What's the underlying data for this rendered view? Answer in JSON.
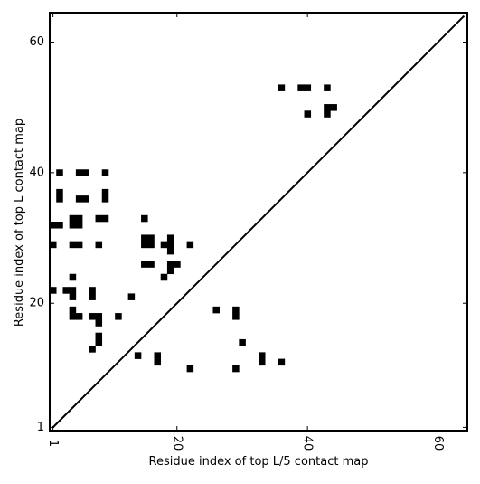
{
  "chart_data": {
    "type": "heatmap",
    "title": "",
    "xlabel": "Residue index of top L/5 contact map",
    "ylabel": "Residue index of top L contact map",
    "xlim": [
      0.5,
      64.5
    ],
    "ylim": [
      0.5,
      64.5
    ],
    "xticks": [
      {
        "value": 1,
        "label": "1"
      },
      {
        "value": 20,
        "label": "20"
      },
      {
        "value": 40,
        "label": "40"
      },
      {
        "value": 60,
        "label": "60"
      }
    ],
    "yticks": [
      {
        "value": 1,
        "label": "1"
      },
      {
        "value": 20,
        "label": "20"
      },
      {
        "value": 40,
        "label": "40"
      },
      {
        "value": 60,
        "label": "60"
      }
    ],
    "diagonal": {
      "from": [
        1,
        1
      ],
      "to": [
        64,
        64
      ]
    },
    "cell_color": "#000000",
    "upper_triangle_cells": [
      [
        36,
        53
      ],
      [
        39,
        53
      ],
      [
        40,
        53
      ],
      [
        43,
        53
      ],
      [
        40,
        49
      ],
      [
        43,
        49
      ],
      [
        43,
        50
      ],
      [
        44,
        50
      ],
      [
        14,
        12
      ],
      [
        17,
        12
      ],
      [
        17,
        11
      ],
      [
        22,
        10
      ],
      [
        29,
        10
      ],
      [
        33,
        12
      ],
      [
        33,
        11
      ],
      [
        36,
        11
      ],
      [
        26,
        19
      ],
      [
        29,
        19
      ],
      [
        29,
        18
      ],
      [
        30,
        14
      ]
    ],
    "lower_triangle_cells": [
      [
        2,
        40
      ],
      [
        5,
        40
      ],
      [
        6,
        40
      ],
      [
        9,
        40
      ],
      [
        2,
        37
      ],
      [
        2,
        36
      ],
      [
        5,
        36
      ],
      [
        6,
        36
      ],
      [
        9,
        37
      ],
      [
        9,
        36
      ],
      [
        1,
        32
      ],
      [
        2,
        32
      ],
      [
        4,
        33
      ],
      [
        5,
        33
      ],
      [
        4,
        32
      ],
      [
        5,
        32
      ],
      [
        8,
        33
      ],
      [
        9,
        33
      ],
      [
        15,
        33
      ],
      [
        1,
        29
      ],
      [
        4,
        29
      ],
      [
        5,
        29
      ],
      [
        8,
        29
      ],
      [
        15,
        30
      ],
      [
        16,
        30
      ],
      [
        15,
        29
      ],
      [
        16,
        29
      ],
      [
        18,
        29
      ],
      [
        19,
        30
      ],
      [
        19,
        29
      ],
      [
        19,
        28
      ],
      [
        22,
        29
      ],
      [
        15,
        26
      ],
      [
        16,
        26
      ],
      [
        19,
        26
      ],
      [
        20,
        26
      ],
      [
        19,
        25
      ],
      [
        18,
        24
      ],
      [
        4,
        24
      ],
      [
        1,
        22
      ],
      [
        3,
        22
      ],
      [
        4,
        22
      ],
      [
        4,
        21
      ],
      [
        7,
        22
      ],
      [
        7,
        21
      ],
      [
        13,
        21
      ],
      [
        4,
        19
      ],
      [
        4,
        18
      ],
      [
        5,
        18
      ],
      [
        7,
        18
      ],
      [
        8,
        18
      ],
      [
        8,
        17
      ],
      [
        11,
        18
      ],
      [
        8,
        15
      ],
      [
        8,
        14
      ],
      [
        7,
        13
      ]
    ]
  }
}
